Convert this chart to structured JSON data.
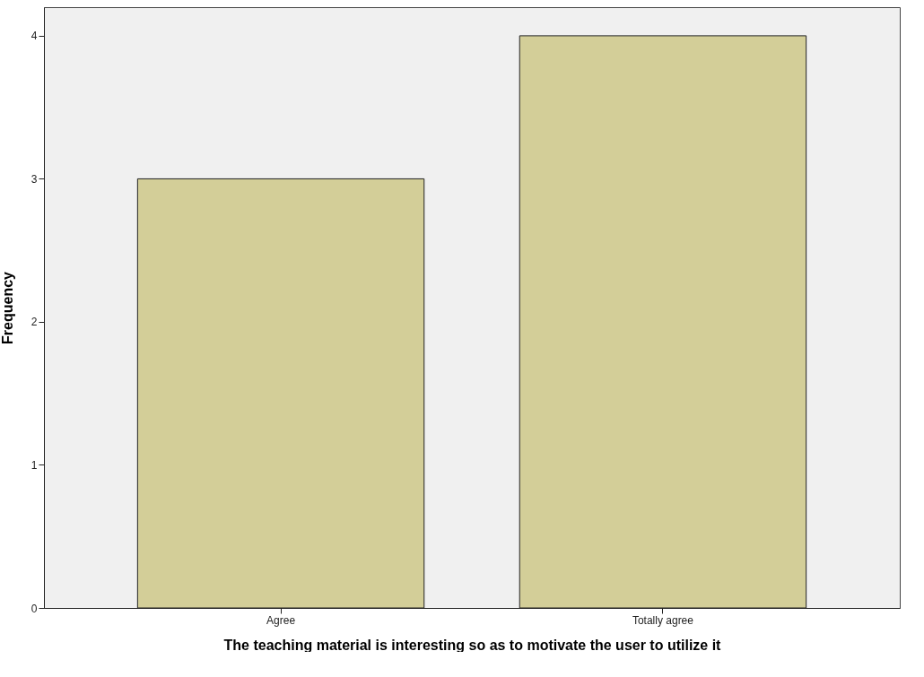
{
  "chart_data": {
    "type": "bar",
    "xlabel": "The teaching material is interesting so as to motivate the user to utilize it",
    "ylabel": "Frequency",
    "categories": [
      "Agree",
      "Totally agree"
    ],
    "values": [
      3,
      4
    ],
    "color": "#d3ce98",
    "ylim": [
      0,
      4.2
    ],
    "yticks": [
      0,
      1,
      2,
      3,
      4
    ],
    "grid": false
  }
}
